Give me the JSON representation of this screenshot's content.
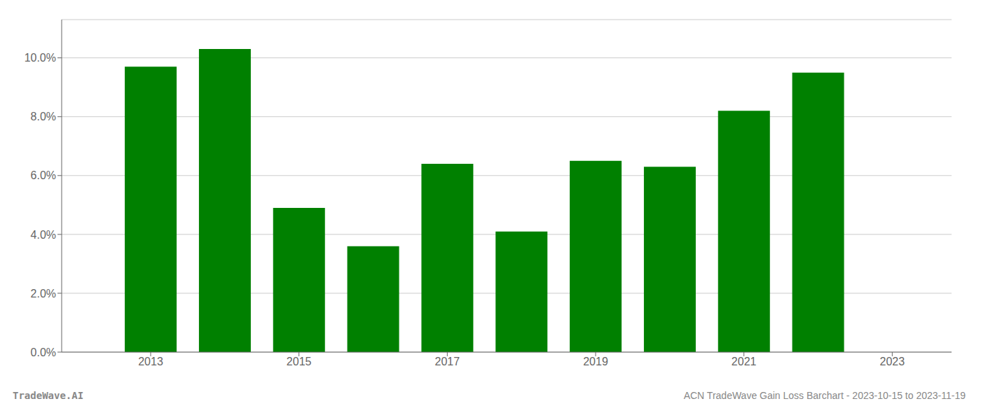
{
  "chart_data": {
    "type": "bar",
    "x": [
      2013,
      2014,
      2015,
      2016,
      2017,
      2018,
      2019,
      2020,
      2021,
      2022
    ],
    "values": [
      0.097,
      0.103,
      0.049,
      0.036,
      0.064,
      0.041,
      0.065,
      0.063,
      0.082,
      0.095
    ],
    "color": "#008000",
    "xlim": [
      2011.8,
      2023.8
    ],
    "xticks": [
      2013,
      2015,
      2017,
      2019,
      2021,
      2023
    ],
    "ylim": [
      0,
      0.113
    ],
    "yticks": [
      {
        "value": 0.0,
        "label": "0.0%"
      },
      {
        "value": 0.02,
        "label": "2.0%"
      },
      {
        "value": 0.04,
        "label": "4.0%"
      },
      {
        "value": 0.06,
        "label": "6.0%"
      },
      {
        "value": 0.08,
        "label": "8.0%"
      },
      {
        "value": 0.1,
        "label": "10.0%"
      }
    ],
    "grid": true,
    "annotations": [
      "TradeWave.AI",
      "ACN TradeWave Gain Loss Barchart - 2023-10-15 to 2023-11-19"
    ]
  }
}
